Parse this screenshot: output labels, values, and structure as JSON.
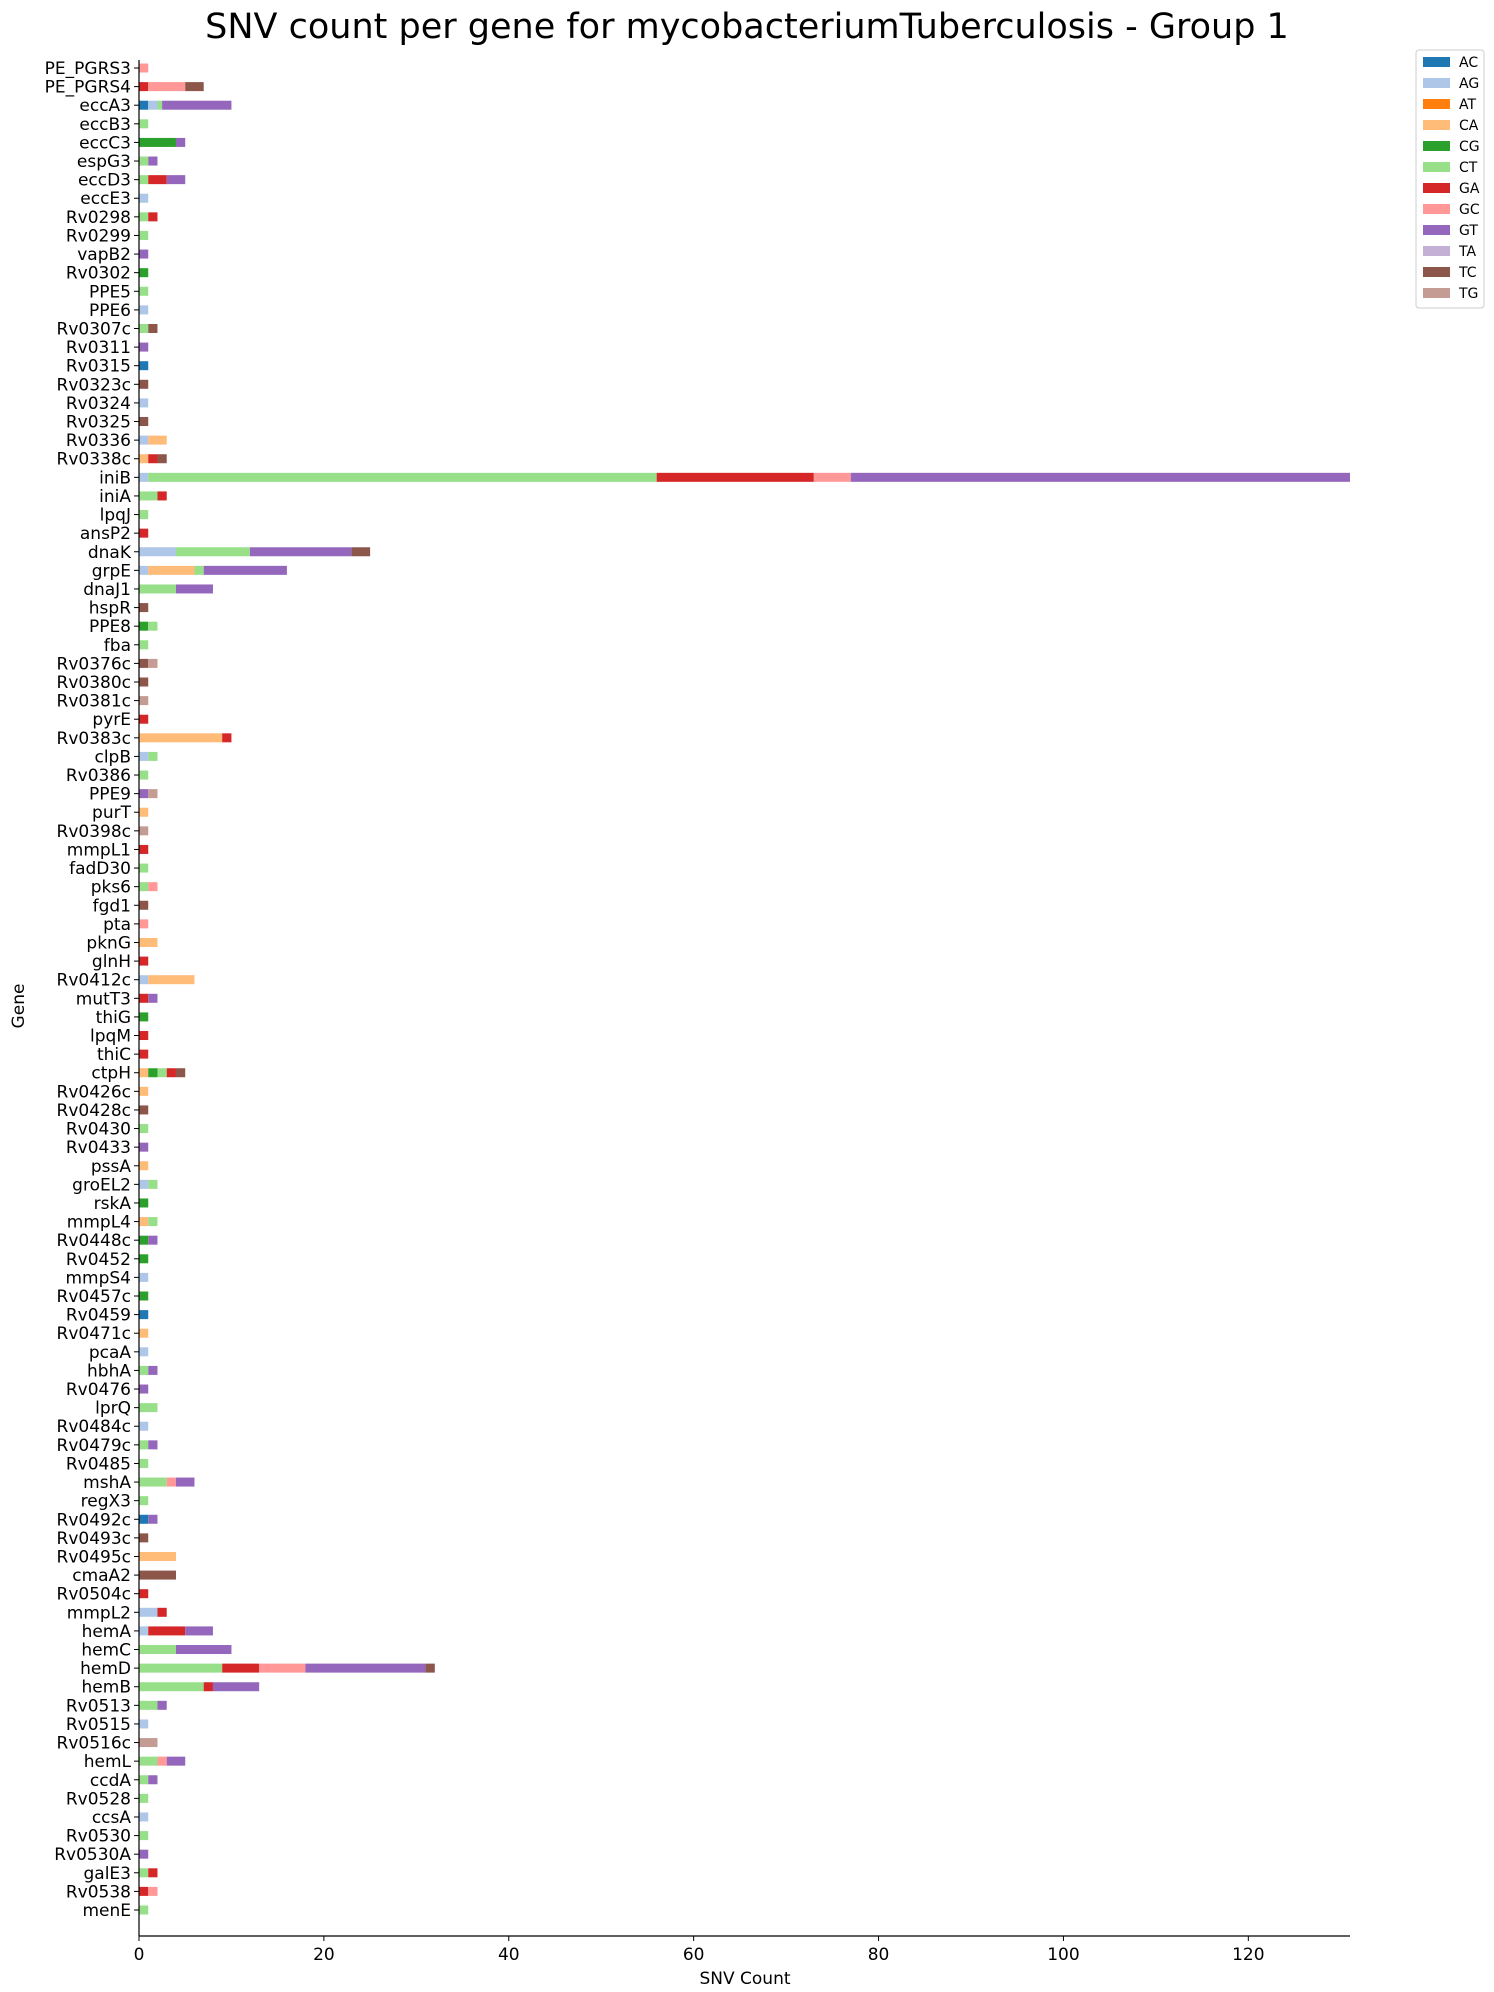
{
  "chart_data": {
    "type": "bar",
    "orientation": "horizontal",
    "stacked": true,
    "title": "SNV count per gene for mycobacteriumTuberculosis - Group 1",
    "xlabel": "SNV Count",
    "ylabel": "Gene",
    "xlim": [
      0,
      131
    ],
    "xticks": [
      0,
      20,
      40,
      60,
      80,
      100,
      120
    ],
    "grid": false,
    "legend_position": "top-right outside",
    "series_colors": {
      "AC": "#1f77b4",
      "AG": "#aec7e8",
      "AT": "#ff7f0e",
      "CA": "#ffbb78",
      "CG": "#2ca02c",
      "CT": "#98df8a",
      "GA": "#d62728",
      "GC": "#ff9896",
      "GT": "#9467bd",
      "TA": "#c5b0d5",
      "TC": "#8c564b",
      "TG": "#c49c94"
    },
    "legend": [
      "AC",
      "AG",
      "AT",
      "CA",
      "CG",
      "CT",
      "GA",
      "GC",
      "GT",
      "TA",
      "TC",
      "TG"
    ],
    "genes": [
      {
        "name": "PE_PGRS3",
        "segments": [
          [
            "GC",
            1
          ]
        ]
      },
      {
        "name": "PE_PGRS4",
        "segments": [
          [
            "GA",
            1
          ],
          [
            "GC",
            4
          ],
          [
            "TC",
            2
          ]
        ]
      },
      {
        "name": "eccA3",
        "segments": [
          [
            "AC",
            1
          ],
          [
            "AG",
            1
          ],
          [
            "CT",
            0.5
          ],
          [
            "GT",
            7.5
          ]
        ]
      },
      {
        "name": "eccB3",
        "segments": [
          [
            "CT",
            1
          ]
        ]
      },
      {
        "name": "eccC3",
        "segments": [
          [
            "CG",
            4
          ],
          [
            "GT",
            1
          ]
        ]
      },
      {
        "name": "espG3",
        "segments": [
          [
            "CT",
            1
          ],
          [
            "GT",
            1
          ]
        ]
      },
      {
        "name": "eccD3",
        "segments": [
          [
            "CT",
            1
          ],
          [
            "GA",
            2
          ],
          [
            "GT",
            2
          ]
        ]
      },
      {
        "name": "eccE3",
        "segments": [
          [
            "AG",
            1
          ]
        ]
      },
      {
        "name": "Rv0298",
        "segments": [
          [
            "CT",
            1
          ],
          [
            "GA",
            1
          ]
        ]
      },
      {
        "name": "Rv0299",
        "segments": [
          [
            "CT",
            1
          ]
        ]
      },
      {
        "name": "vapB2",
        "segments": [
          [
            "GT",
            1
          ]
        ]
      },
      {
        "name": "Rv0302",
        "segments": [
          [
            "CG",
            1
          ]
        ]
      },
      {
        "name": "PPE5",
        "segments": [
          [
            "CT",
            1
          ]
        ]
      },
      {
        "name": "PPE6",
        "segments": [
          [
            "AG",
            1
          ]
        ]
      },
      {
        "name": "Rv0307c",
        "segments": [
          [
            "CT",
            1
          ],
          [
            "TC",
            1
          ]
        ]
      },
      {
        "name": "Rv0311",
        "segments": [
          [
            "GT",
            1
          ]
        ]
      },
      {
        "name": "Rv0315",
        "segments": [
          [
            "AC",
            1
          ]
        ]
      },
      {
        "name": "Rv0323c",
        "segments": [
          [
            "TC",
            1
          ]
        ]
      },
      {
        "name": "Rv0324",
        "segments": [
          [
            "AG",
            1
          ]
        ]
      },
      {
        "name": "Rv0325",
        "segments": [
          [
            "TC",
            1
          ]
        ]
      },
      {
        "name": "Rv0336",
        "segments": [
          [
            "AG",
            1
          ],
          [
            "CA",
            2
          ]
        ]
      },
      {
        "name": "Rv0338c",
        "segments": [
          [
            "CA",
            1
          ],
          [
            "GA",
            1
          ],
          [
            "TC",
            1
          ]
        ]
      },
      {
        "name": "iniB",
        "segments": [
          [
            "AG",
            1
          ],
          [
            "CT",
            55
          ],
          [
            "GA",
            17
          ],
          [
            "GC",
            4
          ],
          [
            "GT",
            54
          ]
        ]
      },
      {
        "name": "iniA",
        "segments": [
          [
            "CT",
            2
          ],
          [
            "GA",
            1
          ]
        ]
      },
      {
        "name": "lpqJ",
        "segments": [
          [
            "CT",
            1
          ]
        ]
      },
      {
        "name": "ansP2",
        "segments": [
          [
            "GA",
            1
          ]
        ]
      },
      {
        "name": "dnaK",
        "segments": [
          [
            "AG",
            4
          ],
          [
            "CT",
            8
          ],
          [
            "GT",
            11
          ],
          [
            "TC",
            2
          ]
        ]
      },
      {
        "name": "grpE",
        "segments": [
          [
            "AG",
            1
          ],
          [
            "CA",
            5
          ],
          [
            "CT",
            1
          ],
          [
            "GT",
            9
          ]
        ]
      },
      {
        "name": "dnaJ1",
        "segments": [
          [
            "CT",
            4
          ],
          [
            "GT",
            4
          ]
        ]
      },
      {
        "name": "hspR",
        "segments": [
          [
            "TC",
            1
          ]
        ]
      },
      {
        "name": "PPE8",
        "segments": [
          [
            "CG",
            1
          ],
          [
            "CT",
            1
          ]
        ]
      },
      {
        "name": "fba",
        "segments": [
          [
            "CT",
            1
          ]
        ]
      },
      {
        "name": "Rv0376c",
        "segments": [
          [
            "TC",
            1
          ],
          [
            "TG",
            1
          ]
        ]
      },
      {
        "name": "Rv0380c",
        "segments": [
          [
            "TC",
            1
          ]
        ]
      },
      {
        "name": "Rv0381c",
        "segments": [
          [
            "TG",
            1
          ]
        ]
      },
      {
        "name": "pyrE",
        "segments": [
          [
            "GA",
            1
          ]
        ]
      },
      {
        "name": "Rv0383c",
        "segments": [
          [
            "CA",
            9
          ],
          [
            "GA",
            1
          ]
        ]
      },
      {
        "name": "clpB",
        "segments": [
          [
            "AG",
            1
          ],
          [
            "CT",
            1
          ]
        ]
      },
      {
        "name": "Rv0386",
        "segments": [
          [
            "CT",
            1
          ]
        ]
      },
      {
        "name": "PPE9",
        "segments": [
          [
            "GT",
            1
          ],
          [
            "TG",
            1
          ]
        ]
      },
      {
        "name": "purT",
        "segments": [
          [
            "CA",
            1
          ]
        ]
      },
      {
        "name": "Rv0398c",
        "segments": [
          [
            "TG",
            1
          ]
        ]
      },
      {
        "name": "mmpL1",
        "segments": [
          [
            "GA",
            1
          ]
        ]
      },
      {
        "name": "fadD30",
        "segments": [
          [
            "CT",
            1
          ]
        ]
      },
      {
        "name": "pks6",
        "segments": [
          [
            "CT",
            1
          ],
          [
            "GC",
            1
          ]
        ]
      },
      {
        "name": "fgd1",
        "segments": [
          [
            "TC",
            1
          ]
        ]
      },
      {
        "name": "pta",
        "segments": [
          [
            "GC",
            1
          ]
        ]
      },
      {
        "name": "pknG",
        "segments": [
          [
            "CA",
            2
          ]
        ]
      },
      {
        "name": "glnH",
        "segments": [
          [
            "GA",
            1
          ]
        ]
      },
      {
        "name": "Rv0412c",
        "segments": [
          [
            "AG",
            1
          ],
          [
            "CA",
            5
          ]
        ]
      },
      {
        "name": "mutT3",
        "segments": [
          [
            "GA",
            1
          ],
          [
            "GT",
            1
          ]
        ]
      },
      {
        "name": "thiG",
        "segments": [
          [
            "CG",
            1
          ]
        ]
      },
      {
        "name": "lpqM",
        "segments": [
          [
            "GA",
            1
          ]
        ]
      },
      {
        "name": "thiC",
        "segments": [
          [
            "GA",
            1
          ]
        ]
      },
      {
        "name": "ctpH",
        "segments": [
          [
            "CA",
            1
          ],
          [
            "CG",
            1
          ],
          [
            "CT",
            1
          ],
          [
            "GA",
            1
          ],
          [
            "TC",
            1
          ]
        ]
      },
      {
        "name": "Rv0426c",
        "segments": [
          [
            "CA",
            1
          ]
        ]
      },
      {
        "name": "Rv0428c",
        "segments": [
          [
            "TC",
            1
          ]
        ]
      },
      {
        "name": "Rv0430",
        "segments": [
          [
            "CT",
            1
          ]
        ]
      },
      {
        "name": "Rv0433",
        "segments": [
          [
            "GT",
            1
          ]
        ]
      },
      {
        "name": "pssA",
        "segments": [
          [
            "CA",
            1
          ]
        ]
      },
      {
        "name": "groEL2",
        "segments": [
          [
            "AG",
            1
          ],
          [
            "CT",
            1
          ]
        ]
      },
      {
        "name": "rskA",
        "segments": [
          [
            "CG",
            1
          ]
        ]
      },
      {
        "name": "mmpL4",
        "segments": [
          [
            "CA",
            1
          ],
          [
            "CT",
            1
          ]
        ]
      },
      {
        "name": "Rv0448c",
        "segments": [
          [
            "CG",
            1
          ],
          [
            "GT",
            1
          ]
        ]
      },
      {
        "name": "Rv0452",
        "segments": [
          [
            "CG",
            1
          ]
        ]
      },
      {
        "name": "mmpS4",
        "segments": [
          [
            "AG",
            1
          ]
        ]
      },
      {
        "name": "Rv0457c",
        "segments": [
          [
            "CG",
            1
          ]
        ]
      },
      {
        "name": "Rv0459",
        "segments": [
          [
            "AC",
            1
          ]
        ]
      },
      {
        "name": "Rv0471c",
        "segments": [
          [
            "CA",
            1
          ]
        ]
      },
      {
        "name": "pcaA",
        "segments": [
          [
            "AG",
            1
          ]
        ]
      },
      {
        "name": "hbhA",
        "segments": [
          [
            "CT",
            1
          ],
          [
            "GT",
            1
          ]
        ]
      },
      {
        "name": "Rv0476",
        "segments": [
          [
            "GT",
            1
          ]
        ]
      },
      {
        "name": "lprQ",
        "segments": [
          [
            "CT",
            2
          ]
        ]
      },
      {
        "name": "Rv0484c",
        "segments": [
          [
            "AG",
            1
          ]
        ]
      },
      {
        "name": "Rv0479c",
        "segments": [
          [
            "CT",
            1
          ],
          [
            "GT",
            1
          ]
        ]
      },
      {
        "name": "Rv0485",
        "segments": [
          [
            "CT",
            1
          ]
        ]
      },
      {
        "name": "mshA",
        "segments": [
          [
            "CT",
            3
          ],
          [
            "GC",
            1
          ],
          [
            "GT",
            2
          ]
        ]
      },
      {
        "name": "regX3",
        "segments": [
          [
            "CT",
            1
          ]
        ]
      },
      {
        "name": "Rv0492c",
        "segments": [
          [
            "AC",
            1
          ],
          [
            "GT",
            1
          ]
        ]
      },
      {
        "name": "Rv0493c",
        "segments": [
          [
            "TC",
            1
          ]
        ]
      },
      {
        "name": "Rv0495c",
        "segments": [
          [
            "CA",
            4
          ]
        ]
      },
      {
        "name": "cmaA2",
        "segments": [
          [
            "TC",
            4
          ]
        ]
      },
      {
        "name": "Rv0504c",
        "segments": [
          [
            "GA",
            1
          ]
        ]
      },
      {
        "name": "mmpL2",
        "segments": [
          [
            "AG",
            2
          ],
          [
            "GA",
            1
          ]
        ]
      },
      {
        "name": "hemA",
        "segments": [
          [
            "AG",
            1
          ],
          [
            "GA",
            4
          ],
          [
            "GT",
            3
          ]
        ]
      },
      {
        "name": "hemC",
        "segments": [
          [
            "CT",
            4
          ],
          [
            "GT",
            6
          ]
        ]
      },
      {
        "name": "hemD",
        "segments": [
          [
            "CT",
            9
          ],
          [
            "GA",
            4
          ],
          [
            "GC",
            5
          ],
          [
            "GT",
            13
          ],
          [
            "TC",
            1
          ]
        ]
      },
      {
        "name": "hemB",
        "segments": [
          [
            "CT",
            7
          ],
          [
            "GA",
            1
          ],
          [
            "GT",
            5
          ]
        ]
      },
      {
        "name": "Rv0513",
        "segments": [
          [
            "CT",
            2
          ],
          [
            "GT",
            1
          ]
        ]
      },
      {
        "name": "Rv0515",
        "segments": [
          [
            "AG",
            1
          ]
        ]
      },
      {
        "name": "Rv0516c",
        "segments": [
          [
            "TG",
            2
          ]
        ]
      },
      {
        "name": "hemL",
        "segments": [
          [
            "CT",
            2
          ],
          [
            "GC",
            1
          ],
          [
            "GT",
            2
          ]
        ]
      },
      {
        "name": "ccdA",
        "segments": [
          [
            "CT",
            1
          ],
          [
            "GT",
            1
          ]
        ]
      },
      {
        "name": "Rv0528",
        "segments": [
          [
            "CT",
            1
          ]
        ]
      },
      {
        "name": "ccsA",
        "segments": [
          [
            "AG",
            1
          ]
        ]
      },
      {
        "name": "Rv0530",
        "segments": [
          [
            "CT",
            1
          ]
        ]
      },
      {
        "name": "Rv0530A",
        "segments": [
          [
            "GT",
            1
          ]
        ]
      },
      {
        "name": "galE3",
        "segments": [
          [
            "CT",
            1
          ],
          [
            "GA",
            1
          ]
        ]
      },
      {
        "name": "Rv0538",
        "segments": [
          [
            "GA",
            1
          ],
          [
            "GC",
            1
          ]
        ]
      },
      {
        "name": "menE",
        "segments": [
          [
            "CT",
            1
          ]
        ]
      }
    ]
  }
}
